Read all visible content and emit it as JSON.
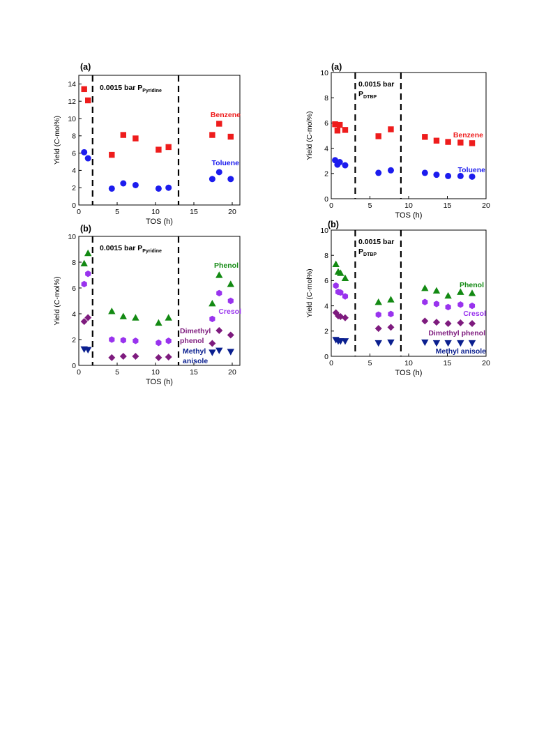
{
  "chart_data": [
    {
      "type": "scatter",
      "panel_label": "(a)",
      "xlabel": "TOS (h)",
      "ylabel": "Yield (C-mol%)",
      "xlim": [
        0,
        21
      ],
      "ylim": [
        0,
        15
      ],
      "xticks": [
        "0",
        "5",
        "10",
        "15",
        "20"
      ],
      "yticks": [
        "0",
        "2",
        "4",
        "6",
        "8",
        "10",
        "12",
        "14"
      ],
      "dashed_lines_x": [
        1.8,
        13.0
      ],
      "condition_text": {
        "main": "0.0015 bar P",
        "sub": "Pyridine"
      },
      "series": [
        {
          "name": "Benzene",
          "marker": "square",
          "color": "#ee1c1c",
          "x": [
            0.7,
            1.2,
            4.3,
            5.8,
            7.4,
            10.4,
            11.7,
            17.4,
            18.3,
            19.8
          ],
          "y": [
            13.4,
            12.1,
            5.8,
            8.1,
            7.7,
            6.4,
            6.7,
            8.1,
            9.4,
            7.9
          ]
        },
        {
          "name": "Toluene",
          "marker": "circle",
          "color": "#1c1cee",
          "x": [
            0.7,
            1.2,
            4.3,
            5.8,
            7.4,
            10.4,
            11.7,
            17.4,
            18.3,
            19.8
          ],
          "y": [
            6.1,
            5.4,
            1.9,
            2.5,
            2.3,
            1.9,
            2.0,
            3.0,
            3.8,
            3.0
          ]
        }
      ]
    },
    {
      "type": "scatter",
      "panel_label": "(a)",
      "xlabel": "TOS (h)",
      "ylabel": "Yield (C-mol%)",
      "xlim": [
        0,
        20
      ],
      "ylim": [
        0,
        10
      ],
      "xticks": [
        "0",
        "5",
        "10",
        "15",
        "20"
      ],
      "yticks": [
        "0",
        "2",
        "4",
        "6",
        "8",
        "10"
      ],
      "dashed_lines_x": [
        3.1,
        9.0
      ],
      "condition_text": {
        "main": "0.0015 bar",
        "line2": "P",
        "sub": "DTBP"
      },
      "series": [
        {
          "name": "Benzene",
          "marker": "square",
          "color": "#ee1c1c",
          "x": [
            0.5,
            0.8,
            1.1,
            1.8,
            6.1,
            7.7,
            12.1,
            13.6,
            15.1,
            16.7,
            18.2
          ],
          "y": [
            5.9,
            5.4,
            5.85,
            5.45,
            4.95,
            5.5,
            4.9,
            4.6,
            4.5,
            4.45,
            4.4
          ]
        },
        {
          "name": "Toluene",
          "marker": "circle",
          "color": "#1c1cee",
          "x": [
            0.5,
            0.8,
            1.1,
            1.8,
            6.1,
            7.7,
            12.1,
            13.6,
            15.1,
            16.7,
            18.2
          ],
          "y": [
            3.05,
            2.7,
            2.9,
            2.65,
            2.05,
            2.25,
            2.05,
            1.9,
            1.8,
            1.8,
            1.75
          ]
        }
      ]
    },
    {
      "type": "scatter",
      "panel_label": "(b)",
      "xlabel": "TOS (h)",
      "ylabel": "Yield (C-mol%)",
      "xlim": [
        0,
        21
      ],
      "ylim": [
        0,
        10
      ],
      "xticks": [
        "0",
        "5",
        "10",
        "15",
        "20"
      ],
      "yticks": [
        "0",
        "2",
        "4",
        "6",
        "8",
        "10"
      ],
      "dashed_lines_x": [
        1.8,
        13.0
      ],
      "condition_text": {
        "main": "0.0015 bar P",
        "sub": "Pyridine"
      },
      "series": [
        {
          "name": "Phenol",
          "marker": "triangle-up",
          "color": "#138a13",
          "x": [
            0.7,
            1.2,
            4.3,
            5.8,
            7.4,
            10.4,
            11.7,
            17.4,
            18.3,
            19.8
          ],
          "y": [
            7.9,
            8.7,
            4.2,
            3.8,
            3.7,
            3.3,
            3.7,
            4.8,
            7.0,
            6.3
          ]
        },
        {
          "name": "Cresol",
          "marker": "hexagon",
          "color": "#9933ee",
          "x": [
            0.7,
            1.2,
            4.3,
            5.8,
            7.4,
            10.4,
            11.7,
            17.4,
            18.3,
            19.8
          ],
          "y": [
            6.3,
            7.1,
            2.0,
            1.95,
            1.9,
            1.75,
            1.9,
            3.6,
            5.6,
            5.0
          ]
        },
        {
          "name": "Dimethyl phenol",
          "marker": "diamond",
          "color": "#7e1b7e",
          "x": [
            0.7,
            1.2,
            4.3,
            5.8,
            7.4,
            10.4,
            11.7,
            17.4,
            18.3,
            19.8
          ],
          "y": [
            3.4,
            3.7,
            0.6,
            0.7,
            0.7,
            0.6,
            0.65,
            1.7,
            2.7,
            2.35
          ]
        },
        {
          "name": "Methyl anisole",
          "marker": "triangle-down",
          "color": "#0a1f8f",
          "x": [
            0.7,
            1.2,
            17.4,
            18.3,
            19.8
          ],
          "y": [
            1.25,
            1.2,
            1.0,
            1.15,
            1.05
          ]
        }
      ]
    },
    {
      "type": "scatter",
      "panel_label": "(b)",
      "xlabel": "TOS (h)",
      "ylabel": "Yield (C-mol%)",
      "xlim": [
        0,
        20
      ],
      "ylim": [
        0,
        10
      ],
      "xticks": [
        "0",
        "5",
        "10",
        "15",
        "20"
      ],
      "yticks": [
        "0",
        "2",
        "4",
        "6",
        "8",
        "10"
      ],
      "dashed_lines_x": [
        3.1,
        9.0
      ],
      "condition_text": {
        "main": "0.0015 bar",
        "line2": "P",
        "sub": "DTBP"
      },
      "series": [
        {
          "name": "Phenol",
          "marker": "triangle-up",
          "color": "#138a13",
          "x": [
            0.6,
            0.9,
            1.2,
            1.8,
            6.1,
            7.7,
            12.1,
            13.6,
            15.1,
            16.7,
            18.2
          ],
          "y": [
            7.3,
            6.7,
            6.6,
            6.2,
            4.3,
            4.5,
            5.4,
            5.2,
            4.8,
            5.1,
            5.0
          ]
        },
        {
          "name": "Cresol",
          "marker": "hexagon",
          "color": "#9933ee",
          "x": [
            0.6,
            0.9,
            1.2,
            1.8,
            6.1,
            7.7,
            12.1,
            13.6,
            15.1,
            16.7,
            18.2
          ],
          "y": [
            5.6,
            5.1,
            5.05,
            4.75,
            3.3,
            3.35,
            4.3,
            4.15,
            3.9,
            4.1,
            4.0
          ]
        },
        {
          "name": "Dimethyl phenol",
          "marker": "diamond",
          "color": "#7e1b7e",
          "x": [
            0.6,
            0.9,
            1.2,
            1.8,
            6.1,
            7.7,
            12.1,
            13.6,
            15.1,
            16.7,
            18.2
          ],
          "y": [
            3.45,
            3.2,
            3.15,
            3.05,
            2.2,
            2.3,
            2.8,
            2.7,
            2.6,
            2.65,
            2.6
          ]
        },
        {
          "name": "Methyl anisole",
          "marker": "triangle-down",
          "color": "#0a1f8f",
          "x": [
            0.6,
            0.9,
            1.2,
            1.8,
            6.1,
            7.7,
            12.1,
            13.6,
            15.1,
            16.7,
            18.2
          ],
          "y": [
            1.3,
            1.2,
            1.2,
            1.2,
            1.05,
            1.1,
            1.1,
            1.05,
            1.05,
            1.05,
            1.05
          ]
        }
      ]
    }
  ]
}
